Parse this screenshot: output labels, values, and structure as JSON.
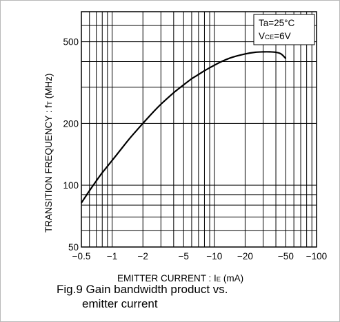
{
  "chart_data": {
    "type": "line",
    "title": "",
    "xlabel_text": "EMITTER  CURRENT : ",
    "xlabel_sym": "I",
    "xlabel_sub": "E",
    "xlabel_unit": " (mA)",
    "ylabel_text": "TRANSITION  FREQUENCY : ",
    "ylabel_sym": "f",
    "ylabel_sub": "T",
    "ylabel_unit": " (MHz)",
    "x_scale": "log",
    "y_scale": "log",
    "xlim": [
      -0.5,
      -100
    ],
    "ylim": [
      50,
      700
    ],
    "x_tick_labels": [
      "−0.5",
      "−1",
      "−2",
      "−5",
      "−10",
      "−20",
      "−50",
      "−100"
    ],
    "x_tick_values": [
      -0.5,
      -1,
      -2,
      -5,
      -10,
      -20,
      -50,
      -100
    ],
    "y_tick_labels": [
      "50",
      "100",
      "200",
      "500"
    ],
    "y_tick_values": [
      50,
      100,
      200,
      500
    ],
    "grid": true,
    "legend": {
      "line1": "Ta=25°C",
      "line2_sym": "V",
      "line2_sub": "CE",
      "line2_rest": "=6V",
      "placement": "top-right"
    },
    "series": [
      {
        "x": [
          -0.5,
          -0.6,
          -0.7,
          -0.8,
          -1,
          -1.2,
          -1.5,
          -2,
          -2.5,
          -3,
          -4,
          -5,
          -6,
          -7,
          -8,
          -10,
          -12,
          -15,
          -20,
          -25,
          -30,
          -35,
          -40,
          -45,
          -50
        ],
        "y": [
          82,
          94,
          105,
          115,
          132,
          148,
          170,
          200,
          226,
          248,
          282,
          308,
          330,
          346,
          361,
          384,
          402,
          420,
          436,
          444,
          446,
          446,
          444,
          436,
          414
        ]
      }
    ]
  },
  "caption": {
    "line1": "Fig.9  Gain bandwidth product vs.",
    "line2": "emitter current"
  },
  "colors": {
    "line": "#000000",
    "grid": "#000000",
    "background": "#ffffff"
  }
}
